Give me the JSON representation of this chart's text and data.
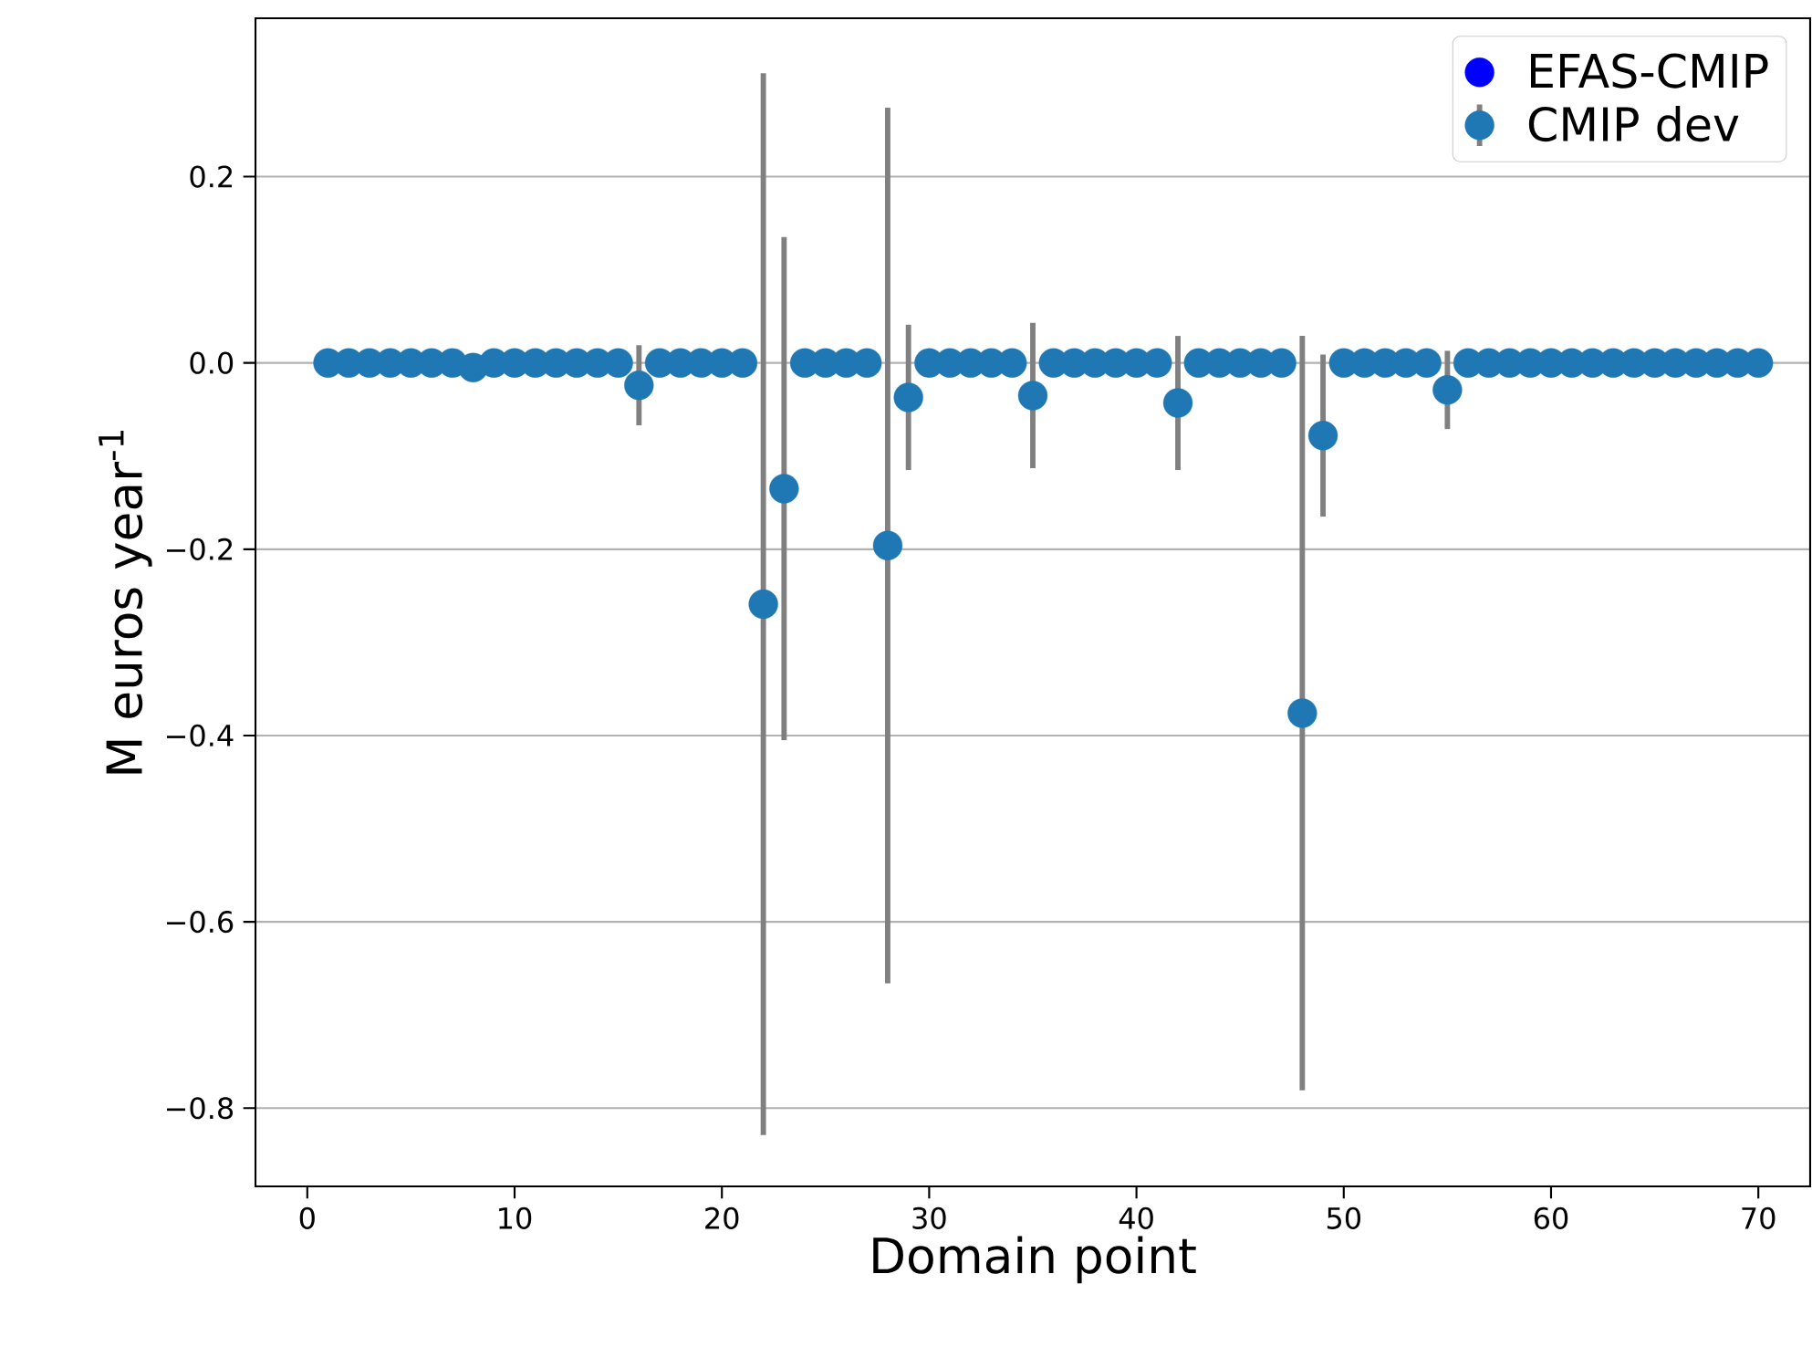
{
  "chart_data": {
    "type": "scatter",
    "xlabel": "Domain point",
    "ylabel": "M euros year$^{-1}$",
    "x": [
      1,
      2,
      3,
      4,
      5,
      6,
      7,
      8,
      9,
      10,
      11,
      12,
      13,
      14,
      15,
      16,
      17,
      18,
      19,
      20,
      21,
      22,
      23,
      24,
      25,
      26,
      27,
      28,
      29,
      30,
      31,
      32,
      33,
      34,
      35,
      36,
      37,
      38,
      39,
      40,
      41,
      42,
      43,
      44,
      45,
      46,
      47,
      48,
      49,
      50,
      51,
      52,
      53,
      54,
      55,
      56,
      57,
      58,
      59,
      60,
      61,
      62,
      63,
      64,
      65,
      66,
      67,
      68,
      69,
      70
    ],
    "series": [
      {
        "name": "EFAS-CMIP",
        "color": "#0000ff",
        "values": [
          null,
          null,
          null,
          null,
          null,
          null,
          null,
          null,
          null,
          null,
          null,
          null,
          null,
          null,
          null,
          null,
          null,
          null,
          null,
          null,
          null,
          null,
          null,
          null,
          null,
          null,
          null,
          null,
          null,
          null,
          null,
          null,
          null,
          null,
          null,
          null,
          null,
          null,
          null,
          null,
          null,
          null,
          null,
          null,
          null,
          null,
          null,
          null,
          null,
          null,
          null,
          null,
          null,
          null,
          null,
          null,
          null,
          null,
          null,
          null,
          null,
          null,
          null,
          null,
          null,
          null,
          null,
          null,
          null,
          null
        ]
      },
      {
        "name": "CMIP dev",
        "color": "#1f77b4",
        "values": [
          0,
          0,
          0,
          0,
          0,
          0,
          0,
          -0.005,
          0,
          0,
          0,
          0,
          0,
          0,
          0,
          -0.024,
          0,
          0,
          0,
          0,
          0,
          -0.259,
          -0.135,
          0,
          0,
          0,
          0,
          -0.196,
          -0.037,
          0,
          0,
          0,
          0,
          0,
          -0.035,
          0,
          0,
          0,
          0,
          0,
          0,
          -0.043,
          0,
          0,
          0,
          0,
          0,
          -0.376,
          -0.078,
          0,
          0,
          0,
          0,
          0,
          -0.029,
          0,
          0,
          0,
          0,
          0,
          0,
          0,
          0,
          0,
          0,
          0,
          0,
          0,
          0,
          0
        ],
        "errors": [
          null,
          null,
          null,
          null,
          null,
          null,
          null,
          null,
          null,
          null,
          null,
          null,
          null,
          null,
          null,
          0.043,
          null,
          null,
          null,
          null,
          null,
          0.57,
          0.27,
          null,
          null,
          null,
          null,
          0.47,
          0.078,
          null,
          null,
          null,
          null,
          null,
          0.078,
          null,
          null,
          null,
          null,
          null,
          null,
          0.072,
          null,
          null,
          null,
          null,
          null,
          0.405,
          0.087,
          null,
          null,
          null,
          null,
          null,
          0.042,
          null,
          null,
          null,
          null,
          null,
          null,
          null,
          null,
          null,
          null,
          null,
          null,
          null,
          null,
          null
        ]
      }
    ],
    "xlim": [
      -2.5,
      72.5
    ],
    "ylim": [
      -0.884,
      0.37
    ],
    "xticks": [
      0,
      10,
      20,
      30,
      40,
      50,
      60,
      70
    ],
    "yticks": [
      {
        "value": -0.8,
        "label": "−0.8"
      },
      {
        "value": -0.6,
        "label": "−0.6"
      },
      {
        "value": -0.4,
        "label": "−0.4"
      },
      {
        "value": -0.2,
        "label": "−0.2"
      },
      {
        "value": 0,
        "label": "0.0"
      },
      {
        "value": 0.2,
        "label": "0.2"
      }
    ],
    "grid": "y",
    "legend": "top right",
    "marker": "circle"
  }
}
